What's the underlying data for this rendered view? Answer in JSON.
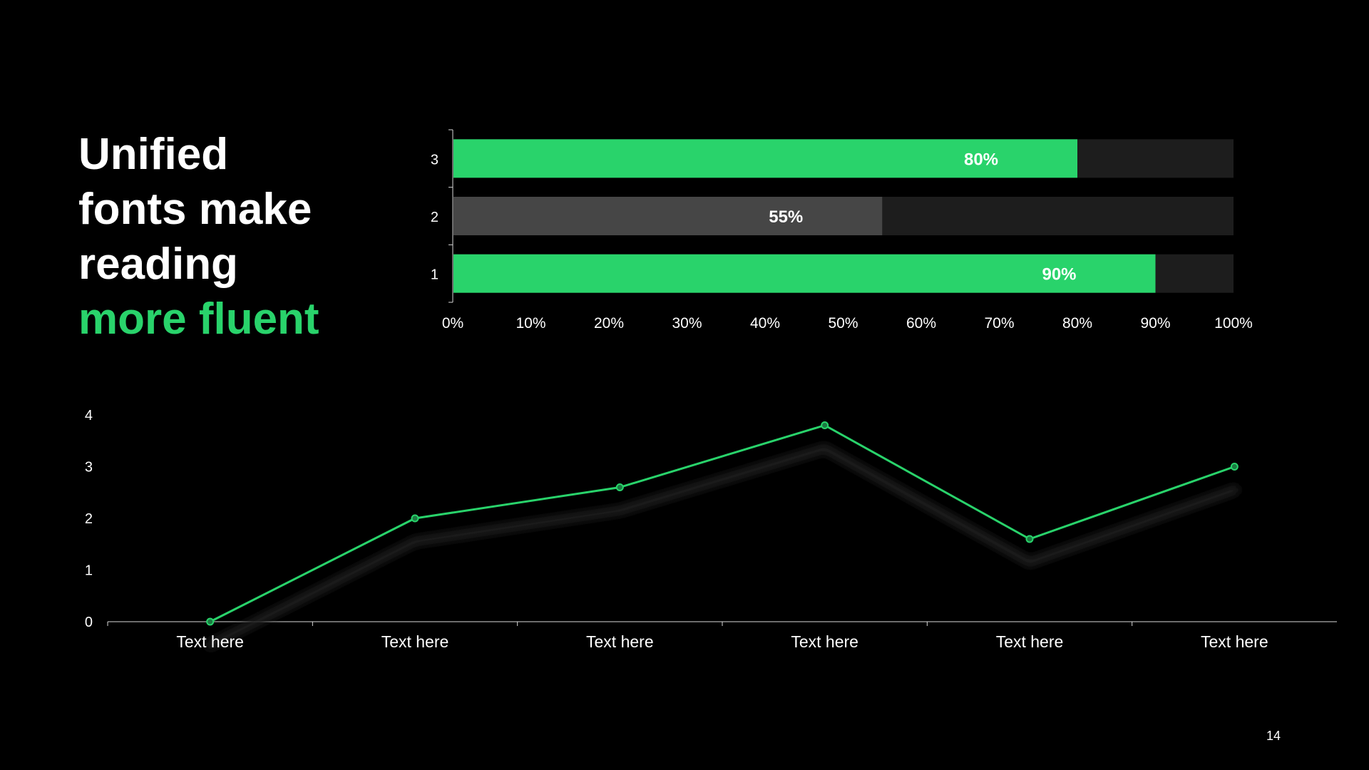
{
  "slide": {
    "title_line1": "Unified",
    "title_line2": "fonts make",
    "title_line3": "reading",
    "title_accent": "more fluent",
    "page_number": "14"
  },
  "colors": {
    "background": "#000000",
    "accent": "#29d36b",
    "bar_gray": "#464646",
    "bar_track": "#1d1d1d",
    "text": "#ffffff",
    "axis": "#d9d9d9"
  },
  "chart_data": [
    {
      "type": "bar",
      "orientation": "horizontal",
      "categories": [
        "1",
        "2",
        "3"
      ],
      "values": [
        90,
        55,
        80
      ],
      "value_labels": [
        "90%",
        "55%",
        "80%"
      ],
      "bar_colors": [
        "#29d36b",
        "#464646",
        "#29d36b"
      ],
      "track_value": 100,
      "xlim": [
        0,
        100
      ],
      "x_ticks": [
        "0%",
        "10%",
        "20%",
        "30%",
        "40%",
        "50%",
        "60%",
        "70%",
        "80%",
        "90%",
        "100%"
      ],
      "grid": false
    },
    {
      "type": "line",
      "categories": [
        "Text here",
        "Text here",
        "Text here",
        "Text here",
        "Text here",
        "Text here"
      ],
      "series": [
        {
          "values": [
            0,
            2,
            2.6,
            3.8,
            1.6,
            3.0
          ],
          "color": "#29d36b",
          "markers": true
        },
        {
          "values": [
            -0.45,
            1.55,
            2.15,
            3.35,
            1.15,
            2.55
          ],
          "color": "#1a1a1a",
          "style": "shadow"
        }
      ],
      "ylim": [
        0,
        4
      ],
      "y_ticks": [
        "0",
        "1",
        "2",
        "3",
        "4"
      ],
      "grid": false
    }
  ]
}
